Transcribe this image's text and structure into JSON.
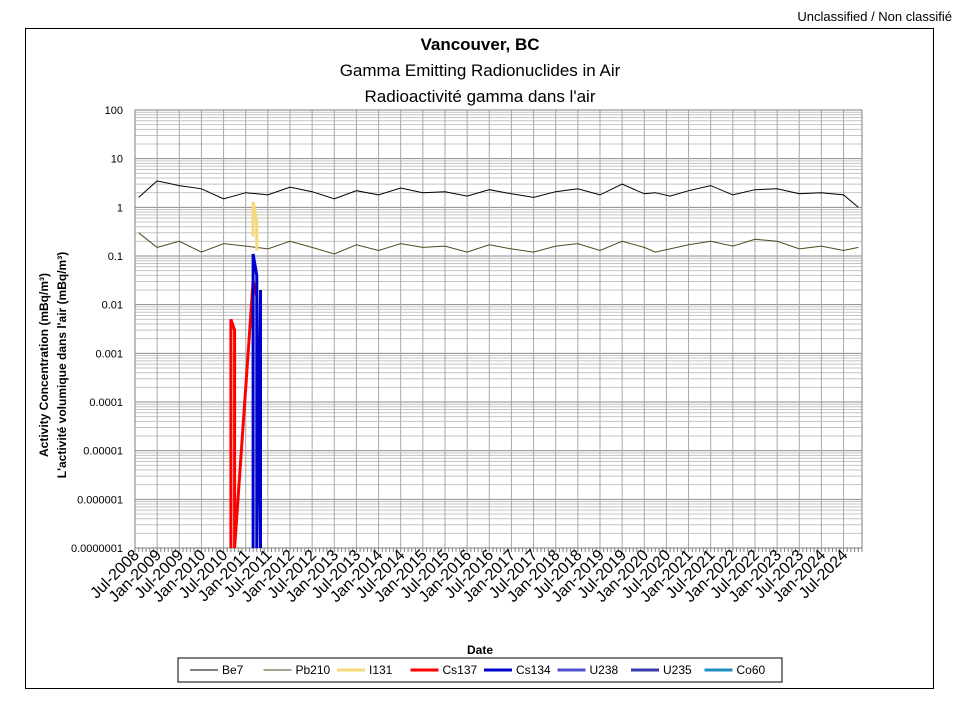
{
  "header": {
    "classification": "Unclassified / Non classifié"
  },
  "chart_data": {
    "type": "line",
    "title": "Vancouver, BC",
    "subtitle_en": "Gamma Emitting Radionuclides in Air",
    "subtitle_fr": "Radioactivité gamma dans l'air",
    "xlabel": "Date",
    "ylabel_en": "Activity Concentration  (mBq/m³)",
    "ylabel_fr": "L'activité volumique dans l'air (mBq/m³)",
    "yscale": "log",
    "ylim": [
      1e-07,
      100
    ],
    "xlim": [
      "2008-07-01",
      "2024-12-01"
    ],
    "grid": true,
    "legend_position": "bottom",
    "y_ticks": [
      "0.0000001",
      "0.000001",
      "0.00001",
      "0.0001",
      "0.001",
      "0.01",
      "0.1",
      "1",
      "10",
      "100"
    ],
    "x_ticks": [
      "Jul-2008",
      "Jan-2009",
      "Jul-2009",
      "Jan-2010",
      "Jul-2010",
      "Jan-2011",
      "Jul-2011",
      "Jan-2012",
      "Jul-2012",
      "Jan-2013",
      "Jul-2013",
      "Jan-2014",
      "Jul-2014",
      "Jan-2015",
      "Jul-2015",
      "Jan-2016",
      "Jul-2016",
      "Jan-2017",
      "Jul-2017",
      "Jan-2018",
      "Jul-2018",
      "Jan-2019",
      "Jul-2019",
      "Jan-2020",
      "Jul-2020",
      "Jan-2021",
      "Jul-2021",
      "Jan-2022",
      "Jul-2022",
      "Jan-2023",
      "Jul-2023",
      "Jan-2024",
      "Jul-2024"
    ],
    "series": [
      {
        "name": "Be7",
        "color": "#000000",
        "x": [
          "2008-08",
          "2009-01",
          "2009-07",
          "2010-01",
          "2010-07",
          "2011-01",
          "2011-07",
          "2012-01",
          "2012-07",
          "2013-01",
          "2013-07",
          "2014-01",
          "2014-07",
          "2015-01",
          "2015-07",
          "2016-01",
          "2016-07",
          "2017-01",
          "2017-07",
          "2018-01",
          "2018-07",
          "2019-01",
          "2019-07",
          "2020-01",
          "2020-04",
          "2020-08",
          "2021-01",
          "2021-07",
          "2022-01",
          "2022-07",
          "2023-01",
          "2023-07",
          "2024-01",
          "2024-07",
          "2024-11"
        ],
        "values": [
          1.6,
          3.5,
          2.8,
          2.4,
          1.5,
          2.0,
          1.8,
          2.6,
          2.1,
          1.5,
          2.2,
          1.8,
          2.5,
          2.0,
          2.1,
          1.7,
          2.3,
          1.9,
          1.6,
          2.1,
          2.4,
          1.8,
          3.0,
          1.9,
          2.0,
          1.7,
          2.2,
          2.8,
          1.8,
          2.3,
          2.4,
          1.9,
          2.0,
          1.8,
          1.0
        ]
      },
      {
        "name": "Pb210",
        "color": "#4d4d1f",
        "x": [
          "2008-08",
          "2009-01",
          "2009-07",
          "2010-01",
          "2010-07",
          "2011-01",
          "2011-07",
          "2012-01",
          "2012-07",
          "2013-01",
          "2013-07",
          "2014-01",
          "2014-07",
          "2015-01",
          "2015-07",
          "2016-01",
          "2016-07",
          "2017-01",
          "2017-07",
          "2018-01",
          "2018-07",
          "2019-01",
          "2019-07",
          "2020-01",
          "2020-04",
          "2020-08",
          "2021-01",
          "2021-07",
          "2022-01",
          "2022-07",
          "2023-01",
          "2023-07",
          "2024-01",
          "2024-07",
          "2024-11"
        ],
        "values": [
          0.3,
          0.15,
          0.2,
          0.12,
          0.18,
          0.16,
          0.14,
          0.2,
          0.15,
          0.11,
          0.17,
          0.13,
          0.18,
          0.15,
          0.16,
          0.12,
          0.17,
          0.14,
          0.12,
          0.16,
          0.18,
          0.13,
          0.2,
          0.15,
          0.12,
          0.14,
          0.17,
          0.2,
          0.16,
          0.22,
          0.2,
          0.14,
          0.16,
          0.13,
          0.15
        ]
      },
      {
        "name": "I131",
        "color": "#f6d97a",
        "x": [
          "2011-03",
          "2011-03",
          "2011-04",
          "2011-04"
        ],
        "values": [
          0.25,
          1.3,
          0.5,
          0.13
        ]
      },
      {
        "name": "Cs137",
        "color": "#ff0000",
        "x": [
          "2010-09",
          "2010-09",
          "2010-10",
          "2010-10",
          "2011-03",
          "2011-04"
        ],
        "values": [
          1e-07,
          0.005,
          0.003,
          1e-07,
          0.03,
          0.015
        ]
      },
      {
        "name": "Cs134",
        "color": "#0000cc",
        "x": [
          "2011-03",
          "2011-03",
          "2011-04",
          "2011-04",
          "2011-05",
          "2011-05"
        ],
        "values": [
          1e-07,
          0.11,
          0.04,
          1e-07,
          0.02,
          1e-07
        ]
      },
      {
        "name": "U238",
        "color": "#5050d0",
        "x": [],
        "values": []
      },
      {
        "name": "U235",
        "color": "#3a3ab0",
        "x": [],
        "values": []
      },
      {
        "name": "Co60",
        "color": "#1f8fbf",
        "x": [],
        "values": []
      }
    ]
  }
}
